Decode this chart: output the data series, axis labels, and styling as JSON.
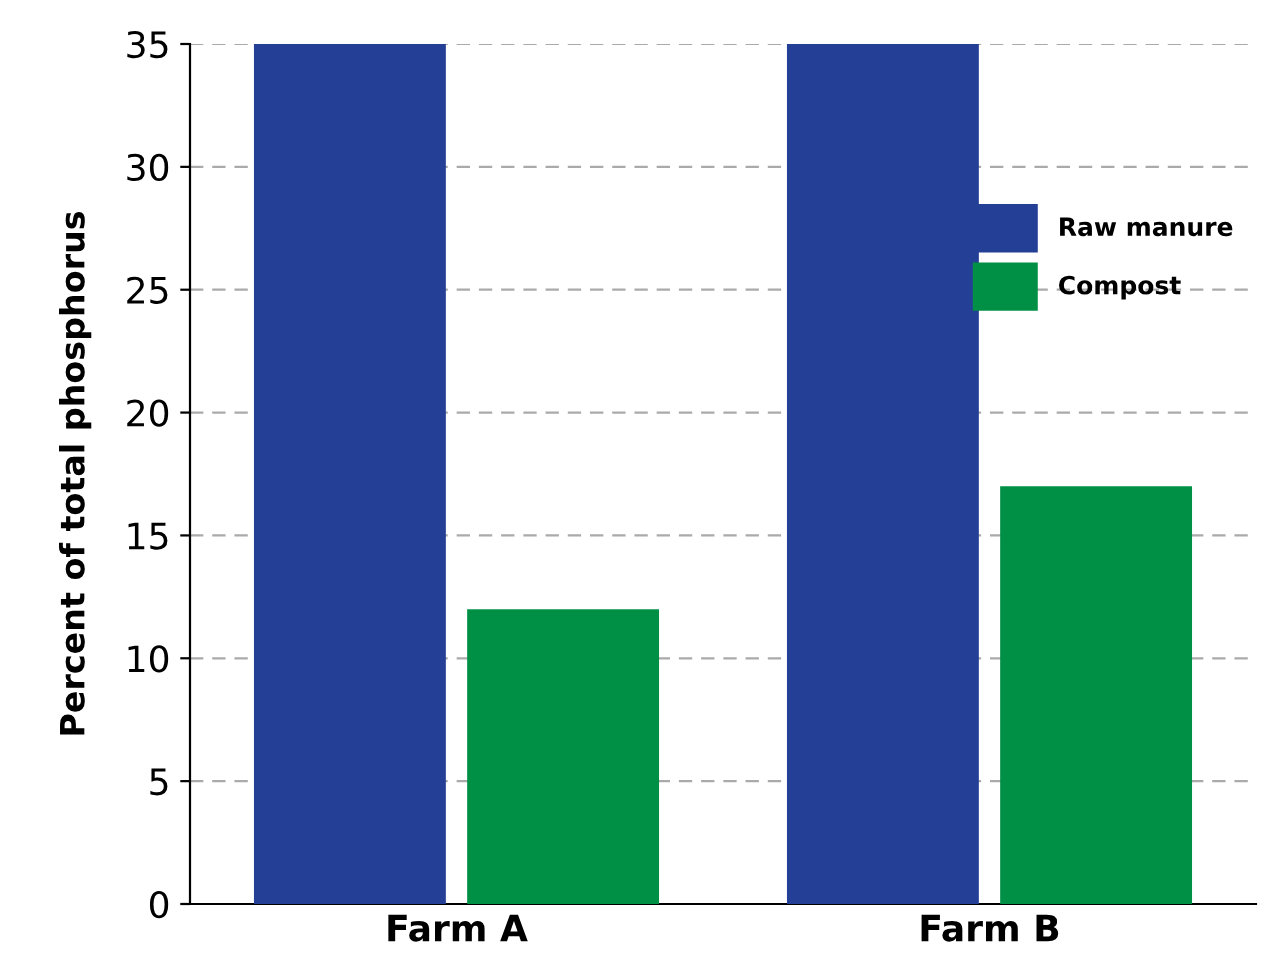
{
  "chart_data": {
    "type": "bar",
    "ylabel": "Percent of total phosphorus",
    "categories": [
      "Farm A",
      "Farm B"
    ],
    "series": [
      {
        "name": "Raw manure",
        "color": "#233f96",
        "values": [
          35,
          35
        ]
      },
      {
        "name": "Compost",
        "color": "#009045",
        "values": [
          12,
          17
        ]
      }
    ],
    "ylim": [
      0,
      35
    ],
    "yticks": [
      0,
      5,
      10,
      15,
      20,
      25,
      30,
      35
    ],
    "grid": "y",
    "legend": "top right"
  }
}
